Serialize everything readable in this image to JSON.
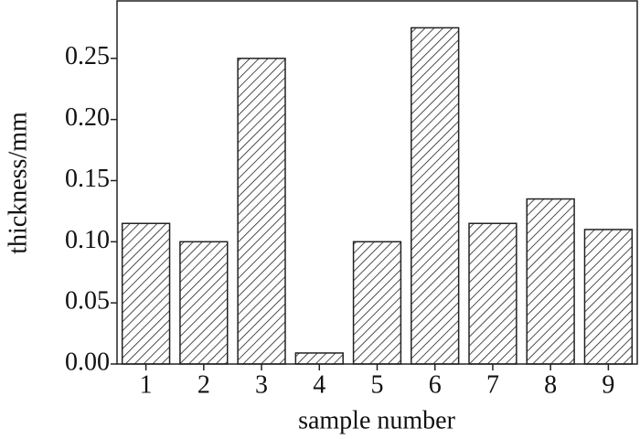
{
  "chart_data": {
    "type": "bar",
    "x_label": "sample number",
    "y_label": "thickness/mm",
    "categories": [
      "1",
      "2",
      "3",
      "4",
      "5",
      "6",
      "7",
      "8",
      "9"
    ],
    "values": [
      0.115,
      0.1,
      0.25,
      0.009,
      0.1,
      0.275,
      0.115,
      0.135,
      0.11
    ],
    "color": "#222222",
    "ylim": [
      0,
      0.297
    ],
    "yticks": [
      {
        "value": 0,
        "label": "0.00"
      },
      {
        "value": 0.05,
        "label": "0.05"
      },
      {
        "value": 0.1,
        "label": "0.10"
      },
      {
        "value": 0.15,
        "label": "0.15"
      },
      {
        "value": 0.2,
        "label": "0.20"
      },
      {
        "value": 0.25,
        "label": "0.25"
      }
    ],
    "grid": false
  }
}
